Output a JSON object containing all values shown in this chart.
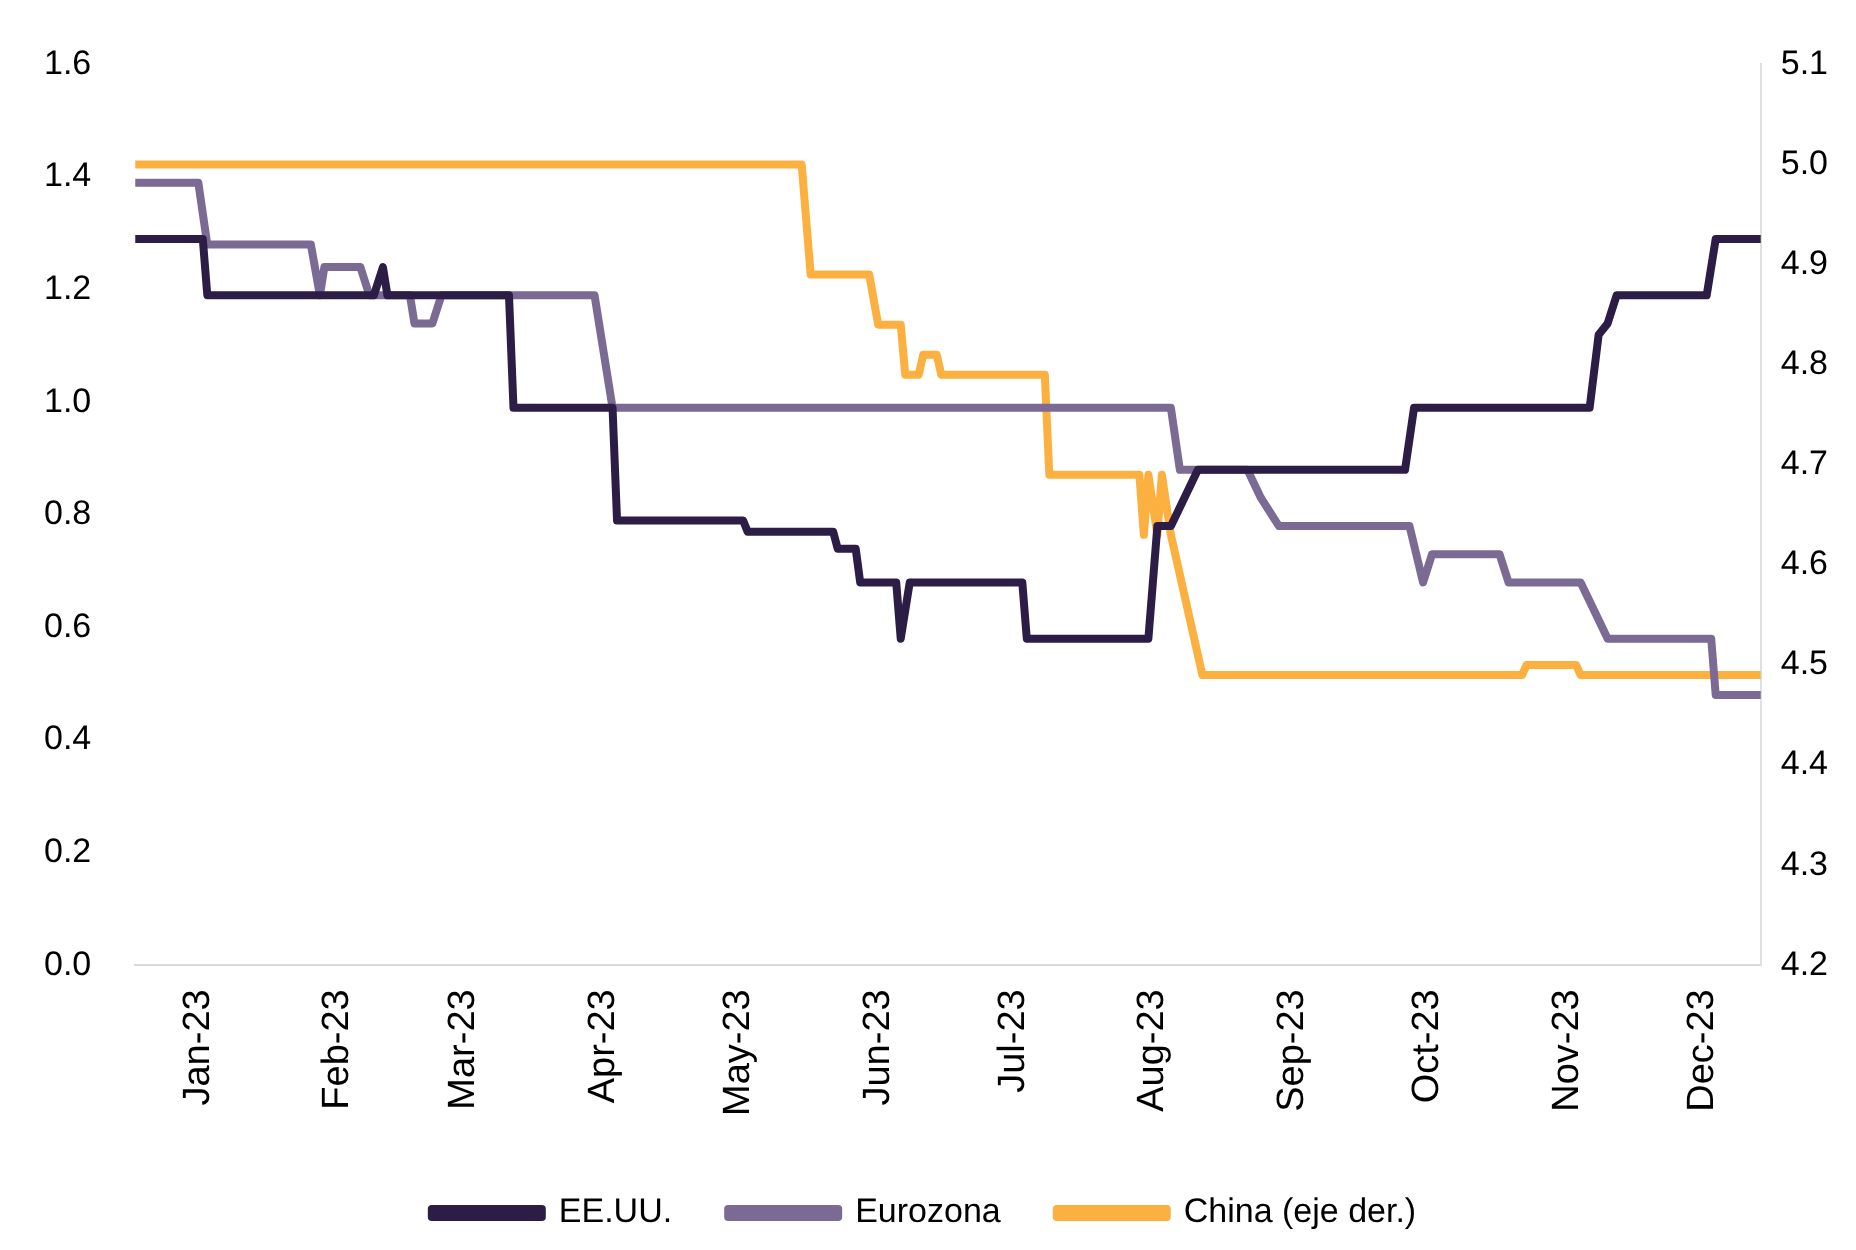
{
  "chart_data": {
    "type": "line",
    "xlim": [
      "2022-12-18",
      "2023-12-14"
    ],
    "xticks": [
      {
        "value": "2023-01-01",
        "label": "Jan-23"
      },
      {
        "value": "2023-02-01",
        "label": "Feb-23"
      },
      {
        "value": "2023-03-01",
        "label": "Mar-23"
      },
      {
        "value": "2023-04-01",
        "label": "Apr-23"
      },
      {
        "value": "2023-05-01",
        "label": "May-23"
      },
      {
        "value": "2023-06-01",
        "label": "Jun-23"
      },
      {
        "value": "2023-07-01",
        "label": "Jul-23"
      },
      {
        "value": "2023-08-01",
        "label": "Aug-23"
      },
      {
        "value": "2023-09-01",
        "label": "Sep-23"
      },
      {
        "value": "2023-10-01",
        "label": "Oct-23"
      },
      {
        "value": "2023-11-01",
        "label": "Nov-23"
      },
      {
        "value": "2023-12-01",
        "label": "Dec-23"
      }
    ],
    "ylim": [
      0,
      1.6
    ],
    "yticks": [
      {
        "value": 0,
        "label": "0.0"
      },
      {
        "value": 0.2,
        "label": "0.2"
      },
      {
        "value": 0.4,
        "label": "0.4"
      },
      {
        "value": 0.6,
        "label": "0.6"
      },
      {
        "value": 0.8,
        "label": "0.8"
      },
      {
        "value": 1,
        "label": "1.0"
      },
      {
        "value": 1.2,
        "label": "1.2"
      },
      {
        "value": 1.4,
        "label": "1.4"
      },
      {
        "value": 1.6,
        "label": "1.6"
      }
    ],
    "y2lim": [
      4.2,
      5.1
    ],
    "y2ticks": [
      4.2,
      4.3,
      4.4,
      4.5,
      4.6,
      4.7,
      4.8,
      4.9,
      {
        "value": 5,
        "label": "5.0"
      },
      5.1
    ],
    "grid": false,
    "legend": "bottom",
    "marker": "none",
    "line_style": "solid",
    "series": [
      {
        "name": "EE.UU.",
        "color": "#2b1d45",
        "x": [
          "2022-12-18",
          "2023-01-02",
          "2023-01-03",
          "2023-02-09",
          "2023-02-11",
          "2023-02-12",
          "2023-03-11",
          "2023-03-12",
          "2023-04-03",
          "2023-04-04",
          "2023-05-02",
          "2023-05-03",
          "2023-05-22",
          "2023-05-23",
          "2023-05-27",
          "2023-05-28",
          "2023-06-05",
          "2023-06-06",
          "2023-06-08",
          "2023-07-03",
          "2023-07-04",
          "2023-07-31",
          "2023-08-02",
          "2023-08-05",
          "2023-08-11",
          "2023-09-26",
          "2023-09-28",
          "2023-11-06",
          "2023-11-08",
          "2023-11-10",
          "2023-11-12",
          "2023-12-02",
          "2023-12-04",
          "2023-12-14"
        ],
        "values": [
          1.29,
          1.29,
          1.19,
          1.19,
          1.24,
          1.19,
          1.19,
          0.99,
          0.99,
          0.79,
          0.79,
          0.77,
          0.77,
          0.74,
          0.74,
          0.68,
          0.68,
          0.58,
          0.68,
          0.68,
          0.58,
          0.58,
          0.78,
          0.78,
          0.88,
          0.88,
          0.99,
          0.99,
          1.12,
          1.14,
          1.19,
          1.19,
          1.29,
          1.29
        ]
      },
      {
        "name": "Eurozona",
        "color": "#7b6a93",
        "x": [
          "2022-12-18",
          "2023-01-01",
          "2023-01-03",
          "2023-01-26",
          "2023-01-28",
          "2023-01-29",
          "2023-02-06",
          "2023-02-08",
          "2023-02-17",
          "2023-02-18",
          "2023-02-22",
          "2023-02-24",
          "2023-03-30",
          "2023-04-01",
          "2023-04-03",
          "2023-08-05",
          "2023-08-07",
          "2023-08-22",
          "2023-08-25",
          "2023-08-29",
          "2023-09-27",
          "2023-09-30",
          "2023-10-02",
          "2023-10-17",
          "2023-10-19",
          "2023-11-04",
          "2023-11-07",
          "2023-11-10",
          "2023-12-03",
          "2023-12-04",
          "2023-12-14"
        ],
        "values": [
          1.39,
          1.39,
          1.28,
          1.28,
          1.19,
          1.24,
          1.24,
          1.19,
          1.19,
          1.14,
          1.14,
          1.19,
          1.19,
          1.09,
          0.99,
          0.99,
          0.88,
          0.88,
          0.83,
          0.78,
          0.78,
          0.68,
          0.73,
          0.73,
          0.68,
          0.68,
          0.63,
          0.58,
          0.58,
          0.48,
          0.48
        ]
      },
      {
        "name": "China (eje der.)",
        "color": "#fbb040",
        "axis": "y2",
        "x": [
          "2022-12-18",
          "2023-05-15",
          "2023-05-17",
          "2023-05-30",
          "2023-06-01",
          "2023-06-06",
          "2023-06-07",
          "2023-06-10",
          "2023-06-11",
          "2023-06-14",
          "2023-06-15",
          "2023-07-08",
          "2023-07-09",
          "2023-07-29",
          "2023-07-30",
          "2023-07-31",
          "2023-08-02",
          "2023-08-03",
          "2023-08-05",
          "2023-08-12",
          "2023-10-22",
          "2023-10-23",
          "2023-11-03",
          "2023-11-04",
          "2023-12-14"
        ],
        "values": [
          5.0,
          5.0,
          4.89,
          4.89,
          4.84,
          4.84,
          4.79,
          4.79,
          4.81,
          4.81,
          4.79,
          4.79,
          4.69,
          4.69,
          4.63,
          4.69,
          4.63,
          4.69,
          4.63,
          4.49,
          4.49,
          4.5,
          4.5,
          4.49,
          4.49
        ]
      }
    ]
  }
}
